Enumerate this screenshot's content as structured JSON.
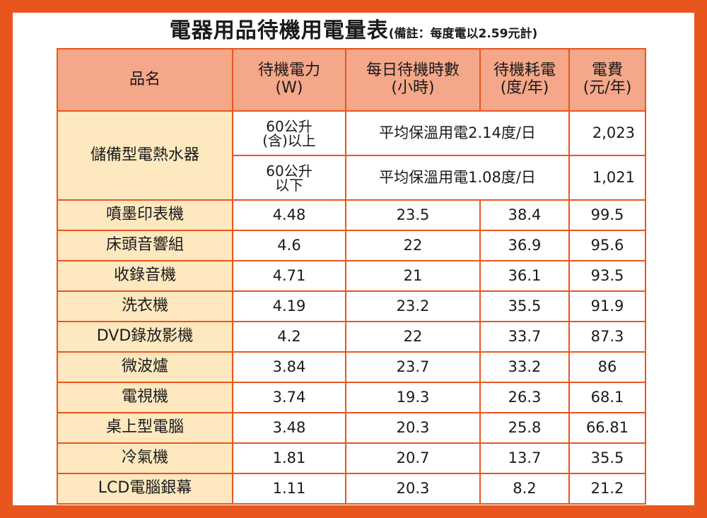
{
  "title": "電器用品待機用電量表",
  "note": "(備註：每度電以2.59元計)",
  "headers": {
    "name": "品名",
    "power_line1": "待機電力",
    "power_line2": "(W)",
    "hours_line1": "每日待機時數",
    "hours_line2": "(小時)",
    "consumption_line1": "待機耗電",
    "consumption_line2": "(度/年)",
    "fee_line1": "電費",
    "fee_line2": "(元/年)"
  },
  "water_heater": {
    "name": "儲備型電熱水器",
    "sub1_line1": "60公升",
    "sub1_line2": "(含)以上",
    "sub1_desc": "平均保溫用電2.14度/日",
    "sub1_fee": "2,023",
    "sub2_line1": "60公升",
    "sub2_line2": "以下",
    "sub2_desc": "平均保溫用電1.08度/日",
    "sub2_fee": "1,021"
  },
  "rows": [
    {
      "name": "噴墨印表機",
      "power": "4.48",
      "hours": "23.5",
      "kwh": "38.4",
      "fee": "99.5"
    },
    {
      "name": "床頭音響組",
      "power": "4.6",
      "hours": "22",
      "kwh": "36.9",
      "fee": "95.6"
    },
    {
      "name": "收錄音機",
      "power": "4.71",
      "hours": "21",
      "kwh": "36.1",
      "fee": "93.5"
    },
    {
      "name": "洗衣機",
      "power": "4.19",
      "hours": "23.2",
      "kwh": "35.5",
      "fee": "91.9"
    },
    {
      "name": "DVD錄放影機",
      "power": "4.2",
      "hours": "22",
      "kwh": "33.7",
      "fee": "87.3"
    },
    {
      "name": "微波爐",
      "power": "3.84",
      "hours": "23.7",
      "kwh": "33.2",
      "fee": "86"
    },
    {
      "name": "電視機",
      "power": "3.74",
      "hours": "19.3",
      "kwh": "26.3",
      "fee": "68.1"
    },
    {
      "name": "桌上型電腦",
      "power": "3.48",
      "hours": "20.3",
      "kwh": "25.8",
      "fee": "66.81"
    },
    {
      "name": "冷氣機",
      "power": "1.81",
      "hours": "20.7",
      "kwh": "13.7",
      "fee": "35.5"
    },
    {
      "name": "LCD電腦銀幕",
      "power": "1.11",
      "hours": "20.3",
      "kwh": "8.2",
      "fee": "21.2"
    }
  ],
  "colors": {
    "border": "#e8561e",
    "header_bg": "#f4a789",
    "name_bg": "#fde8bf"
  }
}
